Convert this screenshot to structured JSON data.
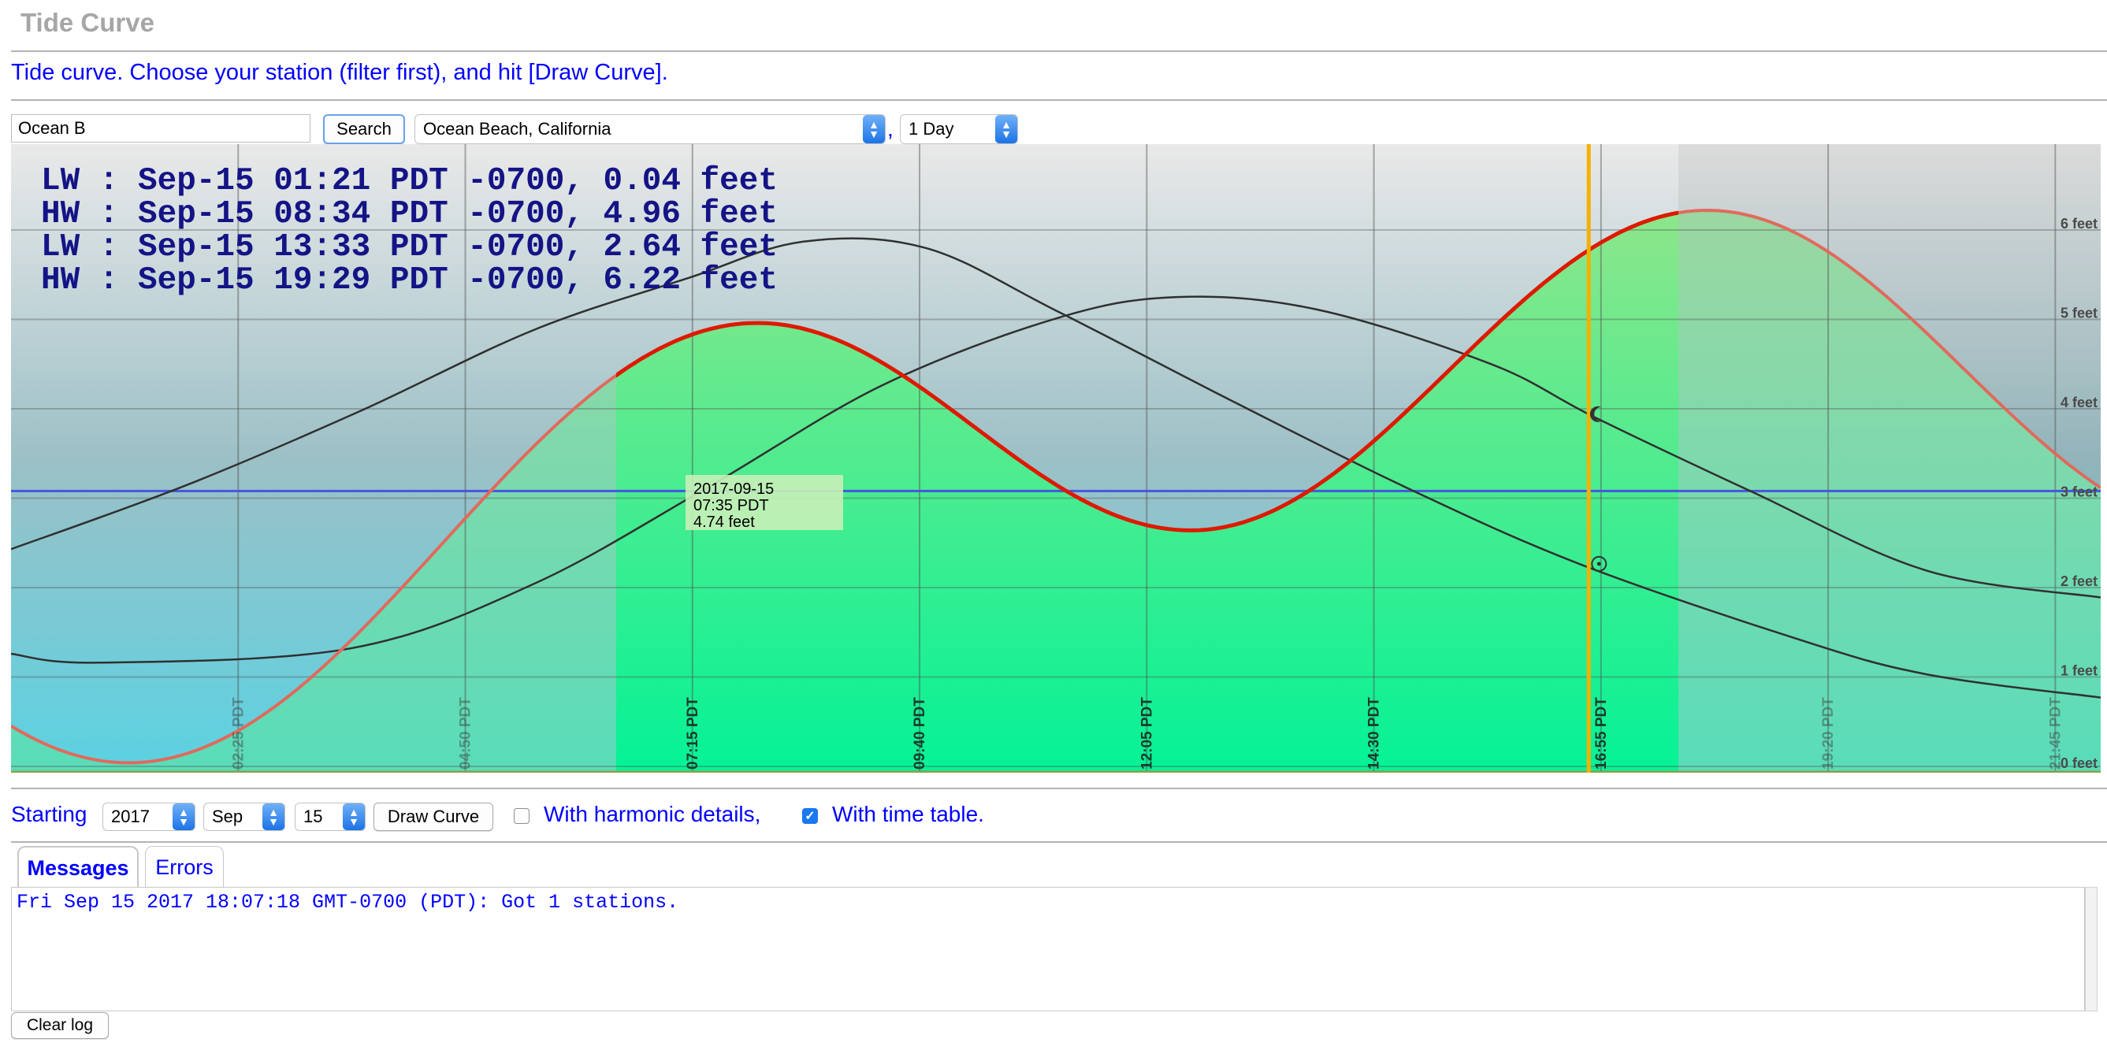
{
  "page": {
    "title": "Tide Curve",
    "subtitle": "Tide curve. Choose your station (filter first), and hit [Draw Curve]."
  },
  "station_filter": {
    "value": "Ocean B"
  },
  "search_label": "Search",
  "station_select": {
    "selected": "Ocean Beach, California"
  },
  "duration_select": {
    "selected": "1 Day"
  },
  "comma": ",",
  "chart": {
    "tide_lines": [
      "LW : Sep-15 01:21 PDT -0700, 0.04 feet",
      "HW : Sep-15 08:34 PDT -0700, 4.96 feet",
      "LW : Sep-15 13:33 PDT -0700, 2.64 feet",
      "HW : Sep-15 19:29 PDT -0700, 6.22 feet"
    ],
    "tooltip": {
      "date": "2017-09-15",
      "time": "07:35 PDT",
      "height": "4.74 feet"
    },
    "colors": {
      "tide": "#dd1a00",
      "daylight": "#00f08c",
      "now_line": "#f5b000",
      "reference_line": "#4a55e0"
    }
  },
  "chart_data": {
    "type": "area",
    "x_tick_labels": [
      "02:25 PDT",
      "04:50 PDT",
      "07:15 PDT",
      "09:40 PDT",
      "12:05 PDT",
      "14:30 PDT",
      "16:55 PDT",
      "19:20 PDT",
      "21:45 PDT"
    ],
    "y_tick_labels": [
      "0 feet",
      "1 feet",
      "2 feet",
      "3 feet",
      "4 feet",
      "5 feet",
      "6 feet"
    ],
    "ylim": [
      0,
      6.95
    ],
    "xlim_hours": [
      0,
      24
    ],
    "grid": true,
    "tide_extremes": [
      {
        "type": "LW",
        "time_h": 1.35,
        "feet": 0.04
      },
      {
        "type": "HW",
        "time_h": 8.57,
        "feet": 4.96
      },
      {
        "type": "LW",
        "time_h": 13.55,
        "feet": 2.64
      },
      {
        "type": "HW",
        "time_h": 19.48,
        "feet": 6.22
      }
    ],
    "daylight_hours": [
      6.95,
      19.15
    ],
    "now_hour": 18.12,
    "reference_level_feet": 3.08,
    "sun_curve": {
      "points": [
        [
          0,
          2.43
        ],
        [
          2,
          3.14
        ],
        [
          4,
          3.97
        ],
        [
          6,
          4.88
        ],
        [
          7.8,
          5.47
        ],
        [
          9.1,
          5.87
        ],
        [
          10.5,
          5.8
        ],
        [
          12,
          5.1
        ],
        [
          14,
          4.1
        ],
        [
          16,
          3.13
        ],
        [
          18,
          2.27
        ],
        [
          20.5,
          1.43
        ],
        [
          22,
          1.03
        ],
        [
          24,
          0.77
        ]
      ]
    },
    "moon_curve": {
      "points": [
        [
          0,
          1.26
        ],
        [
          1,
          1.16
        ],
        [
          3.9,
          1.32
        ],
        [
          6,
          2.04
        ],
        [
          8,
          3.12
        ],
        [
          10,
          4.26
        ],
        [
          12,
          5.01
        ],
        [
          13.4,
          5.25
        ],
        [
          15,
          5.11
        ],
        [
          17,
          4.5
        ],
        [
          18.2,
          3.9
        ],
        [
          20,
          3.07
        ],
        [
          22,
          2.19
        ],
        [
          24,
          1.89
        ]
      ]
    }
  },
  "bottom_controls": {
    "starting_label": "Starting",
    "year": "2017",
    "month": "Sep",
    "day": "15",
    "draw_label": "Draw Curve",
    "harmonic_label": "With harmonic details,",
    "timetable_label": "With time table."
  },
  "tabs": {
    "messages": "Messages",
    "errors": "Errors"
  },
  "log": {
    "line": "Fri Sep 15 2017 18:07:18 GMT-0700 (PDT): Got 1 stations."
  },
  "clear_label": "Clear log"
}
